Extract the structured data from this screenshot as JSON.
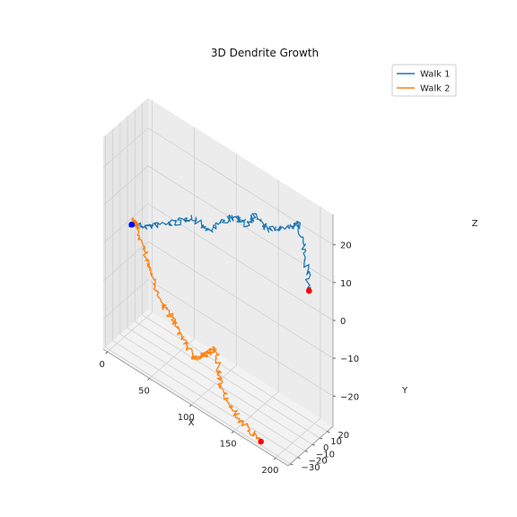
{
  "chart_data": {
    "type": "line",
    "projection": "3d",
    "title": "3D Dendrite Growth",
    "xlabel": "X",
    "ylabel": "Y",
    "zlabel": "Z",
    "xlim": [
      -5,
      215
    ],
    "ylim": [
      -33,
      28
    ],
    "zlim": [
      -28,
      28
    ],
    "xticks": [
      0,
      50,
      100,
      150,
      200
    ],
    "yticks": [
      -30,
      -20,
      -10,
      0,
      10,
      20
    ],
    "zticks": [
      -20,
      -10,
      0,
      10,
      20
    ],
    "grid": true,
    "legend_position": "top-right",
    "series": [
      {
        "name": "Walk 1",
        "color": "#1f77b4",
        "start_point_color": "#0000ff",
        "end_point_color": "#ff0000",
        "x": [
          0,
          15,
          30,
          45,
          60,
          75,
          90,
          105,
          115,
          125,
          140,
          160,
          175,
          185,
          190
        ],
        "y": [
          0,
          3,
          8,
          11,
          14,
          17,
          20,
          22,
          24,
          23,
          25,
          26,
          27,
          25,
          24
        ],
        "z": [
          0,
          1,
          3,
          5,
          8,
          6,
          10,
          13,
          12,
          16,
          14,
          17,
          20,
          14,
          5
        ]
      },
      {
        "name": "Walk 2",
        "color": "#ff7f0e",
        "start_point_color": "#0000ff",
        "end_point_color": "#ff0000",
        "x": [
          0,
          5,
          10,
          20,
          30,
          45,
          60,
          75,
          90,
          100,
          110,
          120,
          125,
          130,
          145,
          160,
          180
        ],
        "y": [
          0,
          -1,
          -3,
          -5,
          -8,
          -11,
          -14,
          -16,
          -18,
          -20,
          -22,
          -23,
          -24,
          -26,
          -28,
          -29,
          -30
        ],
        "z": [
          0,
          2,
          1,
          -4,
          -8,
          -12,
          -14,
          -17,
          -20,
          -17,
          -15,
          -12,
          -18,
          -21,
          -24,
          -26,
          -27
        ]
      }
    ]
  }
}
